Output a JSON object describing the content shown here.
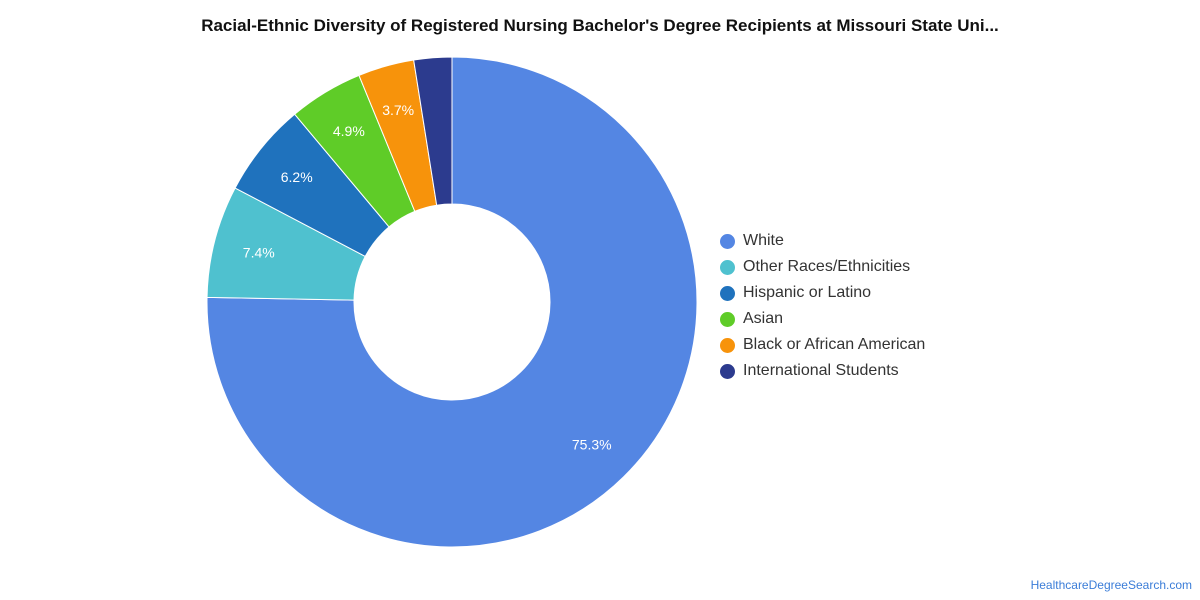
{
  "chart_data": {
    "type": "pie",
    "title": "Racial-Ethnic Diversity of Registered Nursing Bachelor's Degree Recipients at Missouri State Uni...",
    "donut": true,
    "legend_position": "right",
    "categories": [
      "White",
      "Other Races/Ethnicities",
      "Hispanic or Latino",
      "Asian",
      "Black or African American",
      "International Students"
    ],
    "values": [
      75.3,
      7.4,
      6.2,
      4.9,
      3.7,
      2.5
    ],
    "labels": [
      "75.3%",
      "7.4%",
      "6.2%",
      "4.9%",
      "3.7%",
      ""
    ],
    "colors": [
      "#5486e3",
      "#4fc1cf",
      "#1f72bd",
      "#5fcc28",
      "#f7930b",
      "#2c3b8e"
    ]
  },
  "footer": {
    "credit": "HealthcareDegreeSearch.com"
  }
}
